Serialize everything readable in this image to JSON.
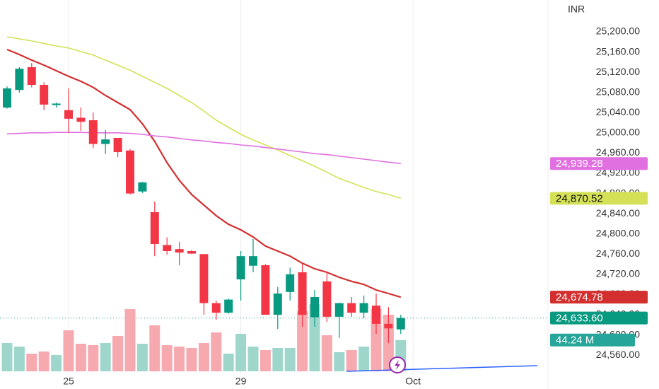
{
  "chart_data": {
    "type": "candlestick",
    "currency": "INR",
    "open": [
      25050,
      25085,
      25130,
      25095,
      25055,
      25045,
      25030,
      25025,
      24978,
      24990,
      24965,
      24884,
      24843,
      24778,
      24770,
      24766,
      24760,
      24663,
      24644,
      24710,
      24737,
      24738,
      24640,
      24685,
      24724,
      24635,
      24706,
      24636,
      24663,
      24644,
      24658,
      24622,
      24611
    ],
    "high": [
      25092,
      25130,
      25138,
      25100,
      25060,
      25088,
      25050,
      25040,
      25006,
      24990,
      24968,
      24903,
      24864,
      24793,
      24784,
      24768,
      24760,
      24668,
      24672,
      24766,
      24790,
      24740,
      24695,
      24733,
      24742,
      24689,
      24724,
      24664,
      24675,
      24678,
      24682,
      24655,
      24640
    ],
    "low": [
      25048,
      25080,
      25090,
      25045,
      25050,
      25000,
      25004,
      24970,
      24958,
      24952,
      24878,
      24881,
      24756,
      24759,
      24738,
      24760,
      24640,
      24630,
      24642,
      24668,
      24724,
      24640,
      24612,
      24668,
      24616,
      24616,
      24626,
      24594,
      24636,
      24633,
      24602,
      24584,
      24602
    ],
    "close": [
      25088,
      25127,
      25095,
      25056,
      25058,
      25028,
      25022,
      24978,
      24987,
      24962,
      24880,
      24902,
      24780,
      24766,
      24763,
      24761,
      24663,
      24644,
      24670,
      24756,
      24756,
      24640,
      24682,
      24720,
      24640,
      24675,
      24636,
      24663,
      24644,
      24663,
      24622,
      24613,
      24633.6
    ],
    "close_label": "24,633.60",
    "up_color": "#089981",
    "down_color": "#f23645",
    "volume": [
      40,
      35,
      25,
      28,
      23,
      58,
      39,
      37,
      40,
      50,
      88,
      39,
      65,
      37,
      35,
      33,
      40,
      55,
      25,
      53,
      35,
      30,
      33,
      33,
      85,
      95,
      51,
      27,
      30,
      35,
      88,
      80,
      44.24
    ],
    "volume_label": "44.24 M",
    "volume_up_color": "#9fd6cc",
    "volume_down_color": "#f7a9b0",
    "volume_ylim": [
      0,
      200
    ],
    "series": [
      {
        "color": "#d32f2f",
        "last_label": "24,674.78",
        "values": [
          25165,
          25155,
          25144,
          25134,
          25123,
          25112,
          25102,
          25090,
          25074,
          25060,
          25046,
          25018,
          24983,
          24941,
          24906,
          24878,
          24857,
          24836,
          24819,
          24808,
          24794,
          24776,
          24766,
          24756,
          24742,
          24731,
          24724,
          24714,
          24706,
          24700,
          24689,
          24682,
          24674.78
        ]
      },
      {
        "color": "#d4e157",
        "last_label": "24,870.52",
        "values": [
          25190,
          25186,
          25182,
          25177,
          25172,
          25168,
          25161,
          25154,
          25144,
          25134,
          25124,
          25112,
          25100,
          25088,
          25074,
          25060,
          25043,
          25025,
          25011,
          24997,
          24986,
          24976,
          24966,
          24955,
          24945,
          24934,
          24922,
          24910,
          24901,
          24892,
          24884,
          24878,
          24870.52
        ]
      },
      {
        "color": "#e070e0",
        "last_label": "24,939.28",
        "values": [
          24998,
          24999,
          25000,
          25000,
          25001,
          25001,
          25001,
          25000,
          25000,
          25000,
          24999,
          24997,
          24994,
          24992,
          24989,
          24986,
          24984,
          24981,
          24979,
          24976,
          24974,
          24971,
          24968,
          24965,
          24962,
          24959,
          24957,
          24954,
          24951,
          24948,
          24945,
          24942,
          24939.28
        ]
      }
    ],
    "ylim": [
      24493,
      25263
    ],
    "yticks": [
      {
        "value": 25200,
        "label": "25,200.00"
      },
      {
        "value": 25160,
        "label": "25,160.00"
      },
      {
        "value": 25120,
        "label": "25,120.00"
      },
      {
        "value": 25080,
        "label": "25,080.00"
      },
      {
        "value": 25040,
        "label": "25,040.00"
      },
      {
        "value": 25000,
        "label": "25,000.00"
      },
      {
        "value": 24960,
        "label": "24,960.00"
      },
      {
        "value": 24920,
        "label": "24,920.00"
      },
      {
        "value": 24880,
        "label": "24,880.00"
      },
      {
        "value": 24840,
        "label": "24,840.00"
      },
      {
        "value": 24800,
        "label": "24,800.00"
      },
      {
        "value": 24760,
        "label": "24,760.00"
      },
      {
        "value": 24720,
        "label": "24,720.00"
      },
      {
        "value": 24680,
        "label": "24,680.00"
      },
      {
        "value": 24640,
        "label": "24,640.00"
      },
      {
        "value": 24600,
        "label": "24,600.00"
      },
      {
        "value": 24560,
        "label": "24,560.00"
      }
    ],
    "xticks": [
      {
        "value": 5,
        "label": "25"
      },
      {
        "value": 19,
        "label": "29"
      },
      {
        "value": 33,
        "label": "Oct"
      }
    ]
  }
}
